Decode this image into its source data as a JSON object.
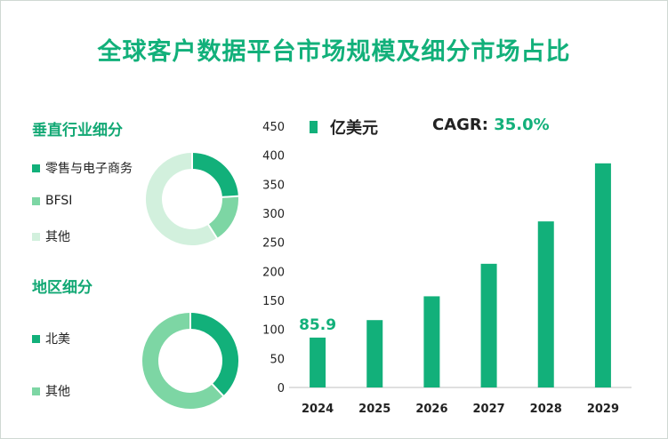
{
  "title": "全球客户数据平台市场规模及细分市场占比",
  "vertical_section": {
    "title": "垂直行业细分",
    "items": [
      {
        "label": "零售与电子商务",
        "color": "#12b07a",
        "value": 0.24
      },
      {
        "label": "BFSI",
        "color": "#7dd6a4",
        "value": 0.17
      },
      {
        "label": "其他",
        "color": "#d2f0dd",
        "value": 0.59
      }
    ]
  },
  "region_section": {
    "title": "地区细分",
    "items": [
      {
        "label": "北美",
        "color": "#12b07a",
        "value": 0.38
      },
      {
        "label": "其他",
        "color": "#7dd6a4",
        "value": 0.62
      }
    ]
  },
  "chart_legend": {
    "label": "亿美元",
    "color": "#12b07a"
  },
  "cagr": {
    "label": "CAGR: ",
    "value": "35.0%"
  },
  "chart_data": {
    "type": "bar",
    "categories": [
      "2024",
      "2025",
      "2026",
      "2027",
      "2028",
      "2029"
    ],
    "values": [
      85.9,
      116,
      157,
      213,
      286,
      386
    ],
    "data_labels": [
      "85.9",
      "",
      "",
      "",
      "",
      ""
    ],
    "ylim": [
      0,
      450
    ],
    "yticks": [
      0,
      50,
      100,
      150,
      200,
      250,
      300,
      350,
      400,
      450
    ],
    "grid": false,
    "bar_color": "#12b07a",
    "label_color": "#12b07a"
  }
}
